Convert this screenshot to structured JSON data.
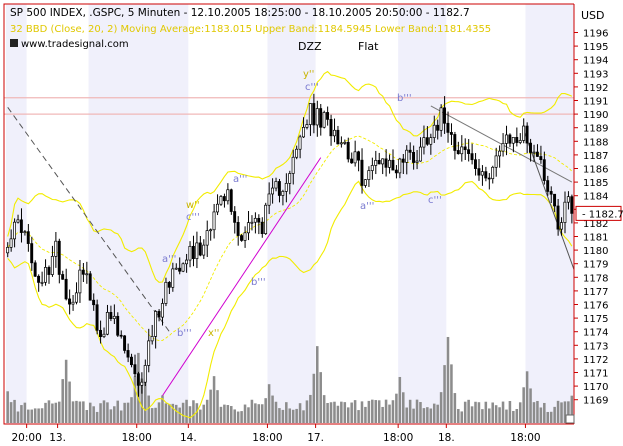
{
  "header": {
    "title": "SP 500 INDEX, .GSPC, 5 Minuten - 12.10.2005 18:25:00 - 18.10.2005 20:50:00 - 1182.7",
    "indicator": "32 BBD (Close, 20, 2) Moving Average:1183.015 Upper Band:1184.5945 Lower Band:1181.4355",
    "source": "www.tradesignal.com"
  },
  "chart_data": {
    "type": "candlestick",
    "title": "SP 500 INDEX, .GSPC, 5 Minuten - 12.10.2005 18:25:00 - 18.10.2005 20:50:00 - 1182.7",
    "axis_unit": "USD",
    "last_price": "1182.7",
    "ylim": [
      1168.5,
      1197.5
    ],
    "y_ticks": [
      1169,
      1170,
      1171,
      1172,
      1173,
      1174,
      1175,
      1176,
      1177,
      1178,
      1179,
      1180,
      1181,
      1182,
      1183,
      1184,
      1185,
      1186,
      1187,
      1188,
      1189,
      1190,
      1191,
      1192,
      1193,
      1194,
      1195,
      1196
    ],
    "x_tick_labels": [
      "20:00",
      "13.",
      "18:00",
      "14.",
      "18:00",
      "17.",
      "18:00",
      "18.",
      "18:00"
    ],
    "x_tick_positions": [
      6,
      15,
      38,
      53,
      76,
      90,
      114,
      128,
      151
    ],
    "bar_count": 165,
    "close_path": [
      [
        0,
        1181
      ],
      [
        4,
        1182
      ],
      [
        9,
        1177
      ],
      [
        14,
        1180
      ],
      [
        18,
        1176
      ],
      [
        22,
        1179
      ],
      [
        26,
        1174
      ],
      [
        30,
        1175
      ],
      [
        35,
        1172
      ],
      [
        38,
        1169.5
      ],
      [
        40,
        1172
      ],
      [
        43,
        1175
      ],
      [
        47,
        1178
      ],
      [
        52,
        1180
      ],
      [
        56,
        1180
      ],
      [
        60,
        1183
      ],
      [
        64,
        1184
      ],
      [
        67,
        1181
      ],
      [
        70,
        1182
      ],
      [
        74,
        1182
      ],
      [
        77,
        1184
      ],
      [
        80,
        1185
      ],
      [
        84,
        1187
      ],
      [
        86,
        1189
      ],
      [
        88,
        1190
      ],
      [
        91,
        1189.5
      ],
      [
        95,
        1189
      ],
      [
        100,
        1187
      ],
      [
        104,
        1185
      ],
      [
        108,
        1187
      ],
      [
        112,
        1186
      ],
      [
        116,
        1187
      ],
      [
        119,
        1187
      ],
      [
        123,
        1189
      ],
      [
        127,
        1190
      ],
      [
        130,
        1188
      ],
      [
        134,
        1187
      ],
      [
        138,
        1185
      ],
      [
        142,
        1187
      ],
      [
        146,
        1188
      ],
      [
        150,
        1188.5
      ],
      [
        154,
        1187
      ],
      [
        157,
        1185
      ],
      [
        160,
        1182
      ],
      [
        163,
        1184
      ],
      [
        164,
        1182.7
      ]
    ],
    "volume_peaks": [
      [
        0,
        0.34
      ],
      [
        17,
        0.69
      ],
      [
        38,
        0.74
      ],
      [
        40,
        0.45
      ],
      [
        45,
        0.3
      ],
      [
        60,
        0.52
      ],
      [
        76,
        0.4
      ],
      [
        90,
        0.82
      ],
      [
        114,
        0.47
      ],
      [
        128,
        0.94
      ],
      [
        151,
        0.55
      ],
      [
        164,
        0.3
      ]
    ],
    "annotations": [
      {
        "label": "DZZ",
        "type": "text"
      },
      {
        "label": "Flat",
        "type": "text"
      },
      {
        "label": "y''",
        "color": "#c8b400"
      },
      {
        "label": "c'''",
        "color": "#7a7ad0"
      },
      {
        "label": "b'''",
        "color": "#7a7ad0"
      },
      {
        "label": "a'''",
        "color": "#7a7ad0"
      },
      {
        "label": "c'''",
        "color": "#7a7ad0"
      },
      {
        "label": "a'''",
        "color": "#7a7ad0"
      },
      {
        "label": "w''",
        "color": "#c8b400"
      },
      {
        "label": "c'''",
        "color": "#7a7ad0"
      },
      {
        "label": "a'''",
        "color": "#7a7ad0"
      },
      {
        "label": "b'''",
        "color": "#7a7ad0"
      },
      {
        "label": "b'''",
        "color": "#7a7ad0"
      },
      {
        "label": "x''",
        "color": "#c8b400"
      }
    ],
    "horizontal_lines": [
      1191.2,
      1190
    ],
    "trend_lines": [
      {
        "from": [
          45,
          1169.3
        ],
        "to": [
          91,
          1186.8
        ],
        "color": "#d000d0"
      },
      {
        "from": [
          0,
          1190.5
        ],
        "to": [
          47,
          1174
        ],
        "color": "#555555",
        "dashed": true
      },
      {
        "from": [
          123,
          1190.6
        ],
        "to": [
          164,
          1185
        ],
        "color": "#777777"
      },
      {
        "from": [
          150,
          1188.8
        ],
        "to": [
          174,
          1172
        ],
        "color": "#555555"
      }
    ],
    "grid": false,
    "colors": {
      "band": "#f2ec00",
      "candle": "#000000",
      "volume": "#8c8c8c",
      "axis": "#cc0000",
      "session_bg": "#f0f0fb"
    }
  }
}
